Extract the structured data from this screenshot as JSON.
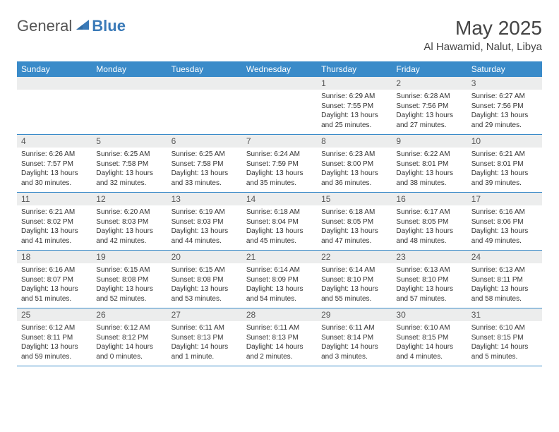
{
  "brand": {
    "part1": "General",
    "part2": "Blue"
  },
  "title": "May 2025",
  "location": "Al Hawamid, Nalut, Libya",
  "colors": {
    "header_bg": "#3a8bc9",
    "header_text": "#ffffff",
    "daynum_bg": "#eceded",
    "border": "#3a8bc9",
    "brand_blue": "#3a7ab8"
  },
  "daysOfWeek": [
    "Sunday",
    "Monday",
    "Tuesday",
    "Wednesday",
    "Thursday",
    "Friday",
    "Saturday"
  ],
  "weeks": [
    [
      {
        "n": "",
        "sr": "",
        "ss": "",
        "dl": ""
      },
      {
        "n": "",
        "sr": "",
        "ss": "",
        "dl": ""
      },
      {
        "n": "",
        "sr": "",
        "ss": "",
        "dl": ""
      },
      {
        "n": "",
        "sr": "",
        "ss": "",
        "dl": ""
      },
      {
        "n": "1",
        "sr": "Sunrise: 6:29 AM",
        "ss": "Sunset: 7:55 PM",
        "dl": "Daylight: 13 hours and 25 minutes."
      },
      {
        "n": "2",
        "sr": "Sunrise: 6:28 AM",
        "ss": "Sunset: 7:56 PM",
        "dl": "Daylight: 13 hours and 27 minutes."
      },
      {
        "n": "3",
        "sr": "Sunrise: 6:27 AM",
        "ss": "Sunset: 7:56 PM",
        "dl": "Daylight: 13 hours and 29 minutes."
      }
    ],
    [
      {
        "n": "4",
        "sr": "Sunrise: 6:26 AM",
        "ss": "Sunset: 7:57 PM",
        "dl": "Daylight: 13 hours and 30 minutes."
      },
      {
        "n": "5",
        "sr": "Sunrise: 6:25 AM",
        "ss": "Sunset: 7:58 PM",
        "dl": "Daylight: 13 hours and 32 minutes."
      },
      {
        "n": "6",
        "sr": "Sunrise: 6:25 AM",
        "ss": "Sunset: 7:58 PM",
        "dl": "Daylight: 13 hours and 33 minutes."
      },
      {
        "n": "7",
        "sr": "Sunrise: 6:24 AM",
        "ss": "Sunset: 7:59 PM",
        "dl": "Daylight: 13 hours and 35 minutes."
      },
      {
        "n": "8",
        "sr": "Sunrise: 6:23 AM",
        "ss": "Sunset: 8:00 PM",
        "dl": "Daylight: 13 hours and 36 minutes."
      },
      {
        "n": "9",
        "sr": "Sunrise: 6:22 AM",
        "ss": "Sunset: 8:01 PM",
        "dl": "Daylight: 13 hours and 38 minutes."
      },
      {
        "n": "10",
        "sr": "Sunrise: 6:21 AM",
        "ss": "Sunset: 8:01 PM",
        "dl": "Daylight: 13 hours and 39 minutes."
      }
    ],
    [
      {
        "n": "11",
        "sr": "Sunrise: 6:21 AM",
        "ss": "Sunset: 8:02 PM",
        "dl": "Daylight: 13 hours and 41 minutes."
      },
      {
        "n": "12",
        "sr": "Sunrise: 6:20 AM",
        "ss": "Sunset: 8:03 PM",
        "dl": "Daylight: 13 hours and 42 minutes."
      },
      {
        "n": "13",
        "sr": "Sunrise: 6:19 AM",
        "ss": "Sunset: 8:03 PM",
        "dl": "Daylight: 13 hours and 44 minutes."
      },
      {
        "n": "14",
        "sr": "Sunrise: 6:18 AM",
        "ss": "Sunset: 8:04 PM",
        "dl": "Daylight: 13 hours and 45 minutes."
      },
      {
        "n": "15",
        "sr": "Sunrise: 6:18 AM",
        "ss": "Sunset: 8:05 PM",
        "dl": "Daylight: 13 hours and 47 minutes."
      },
      {
        "n": "16",
        "sr": "Sunrise: 6:17 AM",
        "ss": "Sunset: 8:05 PM",
        "dl": "Daylight: 13 hours and 48 minutes."
      },
      {
        "n": "17",
        "sr": "Sunrise: 6:16 AM",
        "ss": "Sunset: 8:06 PM",
        "dl": "Daylight: 13 hours and 49 minutes."
      }
    ],
    [
      {
        "n": "18",
        "sr": "Sunrise: 6:16 AM",
        "ss": "Sunset: 8:07 PM",
        "dl": "Daylight: 13 hours and 51 minutes."
      },
      {
        "n": "19",
        "sr": "Sunrise: 6:15 AM",
        "ss": "Sunset: 8:08 PM",
        "dl": "Daylight: 13 hours and 52 minutes."
      },
      {
        "n": "20",
        "sr": "Sunrise: 6:15 AM",
        "ss": "Sunset: 8:08 PM",
        "dl": "Daylight: 13 hours and 53 minutes."
      },
      {
        "n": "21",
        "sr": "Sunrise: 6:14 AM",
        "ss": "Sunset: 8:09 PM",
        "dl": "Daylight: 13 hours and 54 minutes."
      },
      {
        "n": "22",
        "sr": "Sunrise: 6:14 AM",
        "ss": "Sunset: 8:10 PM",
        "dl": "Daylight: 13 hours and 55 minutes."
      },
      {
        "n": "23",
        "sr": "Sunrise: 6:13 AM",
        "ss": "Sunset: 8:10 PM",
        "dl": "Daylight: 13 hours and 57 minutes."
      },
      {
        "n": "24",
        "sr": "Sunrise: 6:13 AM",
        "ss": "Sunset: 8:11 PM",
        "dl": "Daylight: 13 hours and 58 minutes."
      }
    ],
    [
      {
        "n": "25",
        "sr": "Sunrise: 6:12 AM",
        "ss": "Sunset: 8:11 PM",
        "dl": "Daylight: 13 hours and 59 minutes."
      },
      {
        "n": "26",
        "sr": "Sunrise: 6:12 AM",
        "ss": "Sunset: 8:12 PM",
        "dl": "Daylight: 14 hours and 0 minutes."
      },
      {
        "n": "27",
        "sr": "Sunrise: 6:11 AM",
        "ss": "Sunset: 8:13 PM",
        "dl": "Daylight: 14 hours and 1 minute."
      },
      {
        "n": "28",
        "sr": "Sunrise: 6:11 AM",
        "ss": "Sunset: 8:13 PM",
        "dl": "Daylight: 14 hours and 2 minutes."
      },
      {
        "n": "29",
        "sr": "Sunrise: 6:11 AM",
        "ss": "Sunset: 8:14 PM",
        "dl": "Daylight: 14 hours and 3 minutes."
      },
      {
        "n": "30",
        "sr": "Sunrise: 6:10 AM",
        "ss": "Sunset: 8:15 PM",
        "dl": "Daylight: 14 hours and 4 minutes."
      },
      {
        "n": "31",
        "sr": "Sunrise: 6:10 AM",
        "ss": "Sunset: 8:15 PM",
        "dl": "Daylight: 14 hours and 5 minutes."
      }
    ]
  ]
}
